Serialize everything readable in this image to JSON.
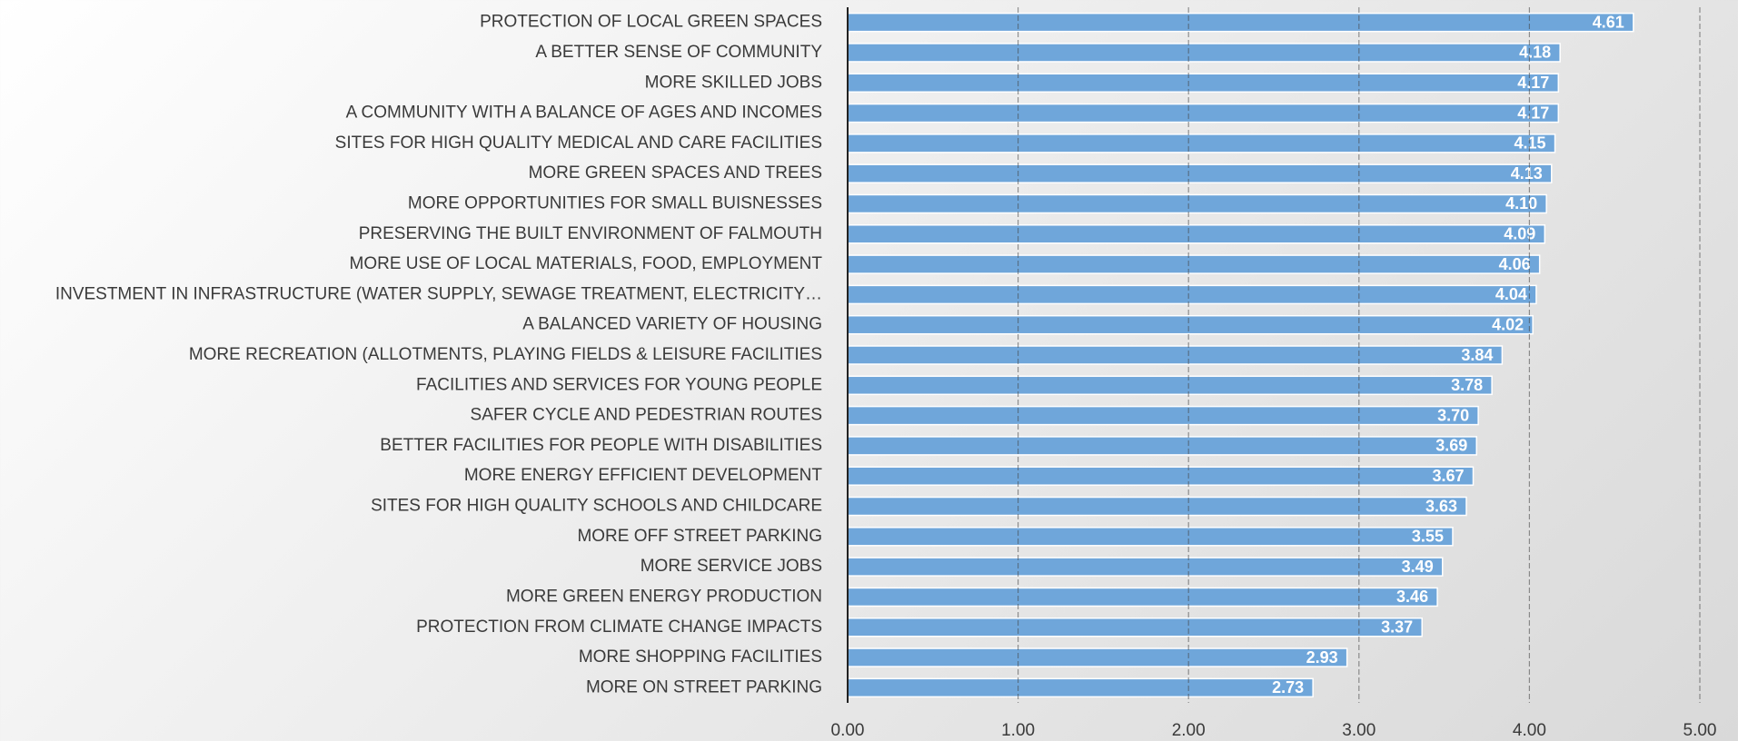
{
  "chart_data": {
    "type": "bar",
    "orientation": "horizontal",
    "color": "#6fa6da",
    "grid": true,
    "categories": [
      "PROTECTION  OF LOCAL GREEN SPACES",
      "A BETTER  SENSE OF COMMUNITY",
      "MORE SKILLED  JOBS",
      "A COMMUNITY  WITH  A BALANCE  OF AGES AND INCOMES",
      "SITES  FOR HIGH QUALITY  MEDICAL  AND CARE FACILITIES",
      "MORE GREEN  SPACES  AND TREES",
      "MORE OPPORTUNITIES  FOR SMALL  BUISNESSES",
      "PRESERVING  THE BUILT ENVIRONMENT  OF FALMOUTH",
      "MORE USE OF LOCAL MATERIALS,  FOOD, EMPLOYMENT",
      "INVESTMENT  IN INFRASTRUCTURE  (WATER SUPPLY, SEWAGE TREATMENT,  ELECTRICITY…",
      "A BALANCED VARIETY  OF HOUSING",
      "MORE RECREATION  (ALLOTMENTS, PLAYING FIELDS & LEISURE  FACILITIES",
      "FACILITIES  AND SERVICES  FOR YOUNG  PEOPLE",
      "SAFER  CYCLE  AND PEDESTRIAN  ROUTES",
      "BETTER  FACILITIES  FOR PEOPLE WITH DISABILITIES",
      "MORE ENERGY  EFFICIENT  DEVELOPMENT",
      "SITES  FOR HIGH QUALITY  SCHOOLS AND CHILDCARE",
      "MORE OFF STREET  PARKING",
      "MORE SERVICE  JOBS",
      "MORE GREEN  ENERGY  PRODUCTION",
      "PROTECTION  FROM CLIMATE  CHANGE IMPACTS",
      "MORE SHOPPING  FACILITIES",
      "MORE ON STREET  PARKING"
    ],
    "values": [
      4.61,
      4.18,
      4.17,
      4.17,
      4.15,
      4.13,
      4.1,
      4.09,
      4.06,
      4.04,
      4.02,
      3.84,
      3.78,
      3.7,
      3.69,
      3.67,
      3.63,
      3.55,
      3.49,
      3.46,
      3.37,
      2.93,
      2.73
    ],
    "value_labels": [
      "4.61",
      "4.18",
      "4.17",
      "4.17",
      "4.15",
      "4.13",
      "4.10",
      "4.09",
      "4.06",
      "4.04",
      "4.02",
      "3.84",
      "3.78",
      "3.70",
      "3.69",
      "3.67",
      "3.63",
      "3.55",
      "3.49",
      "3.46",
      "3.37",
      "2.93",
      "2.73"
    ],
    "xlim": [
      0,
      5
    ],
    "xticks": [
      {
        "value": 0,
        "label": "0.00"
      },
      {
        "value": 1,
        "label": "1.00"
      },
      {
        "value": 2,
        "label": "2.00"
      },
      {
        "value": 3,
        "label": "3.00"
      },
      {
        "value": 4,
        "label": "4.00"
      },
      {
        "value": 5,
        "label": "5.00"
      }
    ]
  }
}
